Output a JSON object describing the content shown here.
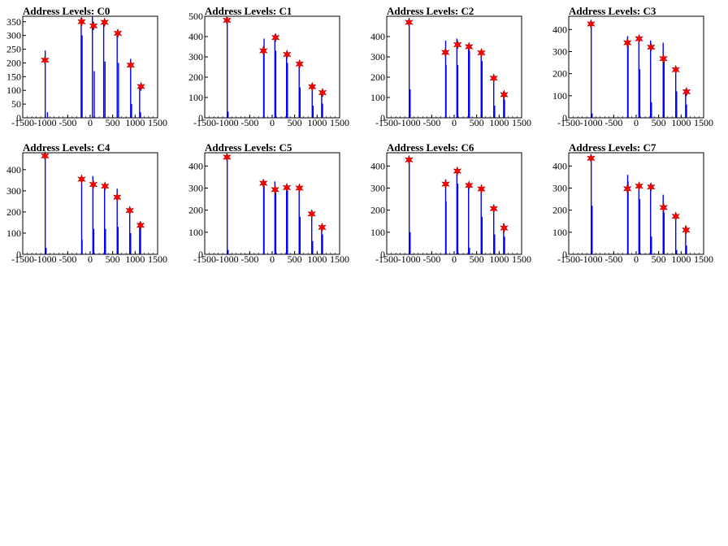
{
  "figure": {
    "background": "#ffffff",
    "bar_color": "#0000ff",
    "peak_marker_color": "#ff0000"
  },
  "chart_data": [
    {
      "type": "histogram",
      "title": "Address Levels: C0",
      "xlim": [
        -1500,
        1500
      ],
      "ylim": [
        0,
        370
      ],
      "x_ticks": [
        -1500,
        -1000,
        -500,
        0,
        500,
        1000,
        1500
      ],
      "x_tick_labels": [
        "-1500",
        "-1000",
        "-500",
        "0",
        "500",
        "1000",
        "1500"
      ],
      "y_ticks": [
        0,
        50,
        100,
        150,
        200,
        250,
        300,
        350
      ],
      "series": [
        {
          "x": [
            -1000,
            -950,
            -200,
            -180,
            50,
            90,
            300,
            330,
            600,
            630,
            900,
            920,
            1100,
            1120
          ],
          "y": [
            245,
            20,
            365,
            300,
            370,
            170,
            355,
            205,
            310,
            200,
            215,
            50,
            115,
            20
          ]
        }
      ],
      "peaks": [
        {
          "x": -1005,
          "y": 210
        },
        {
          "x": -190,
          "y": 350
        },
        {
          "x": 75,
          "y": 335
        },
        {
          "x": 320,
          "y": 348
        },
        {
          "x": 615,
          "y": 308
        },
        {
          "x": 900,
          "y": 192
        },
        {
          "x": 1130,
          "y": 114
        }
      ]
    },
    {
      "type": "histogram",
      "title": "Address Levels: C1",
      "xlim": [
        -1500,
        1500
      ],
      "ylim": [
        0,
        500
      ],
      "x_ticks": [
        -1500,
        -1000,
        -500,
        0,
        500,
        1000,
        1500
      ],
      "x_tick_labels": [
        "-1500",
        "-1000",
        "-500",
        "0",
        "500",
        "1000",
        "1500"
      ],
      "y_ticks": [
        0,
        100,
        200,
        300,
        400,
        500
      ],
      "series": [
        {
          "x": [
            -1000,
            -980,
            -190,
            -180,
            60,
            80,
            320,
            340,
            600,
            620,
            890,
            910,
            1100,
            1120
          ],
          "y": [
            490,
            30,
            320,
            390,
            410,
            330,
            300,
            270,
            280,
            150,
            170,
            60,
            130,
            70
          ]
        }
      ],
      "peaks": [
        {
          "x": -1005,
          "y": 480
        },
        {
          "x": -195,
          "y": 330
        },
        {
          "x": 75,
          "y": 395
        },
        {
          "x": 330,
          "y": 312
        },
        {
          "x": 610,
          "y": 265
        },
        {
          "x": 890,
          "y": 153
        },
        {
          "x": 1120,
          "y": 124
        }
      ]
    },
    {
      "type": "histogram",
      "title": "Address Levels: C2",
      "xlim": [
        -1500,
        1500
      ],
      "ylim": [
        0,
        500
      ],
      "x_ticks": [
        -1500,
        -1000,
        -500,
        0,
        500,
        1000,
        1500
      ],
      "x_tick_labels": [
        "-1500",
        "-1000",
        "-500",
        "0",
        "500",
        "1000",
        "1500"
      ],
      "y_ticks": [
        0,
        100,
        200,
        300,
        400
      ],
      "series": [
        {
          "x": [
            -1000,
            -980,
            -190,
            -180,
            60,
            80,
            320,
            340,
            600,
            620,
            880,
            900,
            1100,
            1120
          ],
          "y": [
            490,
            140,
            380,
            260,
            390,
            260,
            360,
            330,
            310,
            280,
            200,
            60,
            130,
            90
          ]
        }
      ],
      "peaks": [
        {
          "x": -1005,
          "y": 470
        },
        {
          "x": -195,
          "y": 322
        },
        {
          "x": 75,
          "y": 360
        },
        {
          "x": 330,
          "y": 350
        },
        {
          "x": 605,
          "y": 320
        },
        {
          "x": 880,
          "y": 195
        },
        {
          "x": 1110,
          "y": 114
        }
      ]
    },
    {
      "type": "histogram",
      "title": "Address Levels: C3",
      "xlim": [
        -1500,
        1500
      ],
      "ylim": [
        0,
        460
      ],
      "x_ticks": [
        -1500,
        -1000,
        -500,
        0,
        500,
        1000,
        1500
      ],
      "x_tick_labels": [
        "-1500",
        "-1000",
        "-500",
        "0",
        "500",
        "1000",
        "1500"
      ],
      "y_ticks": [
        0,
        100,
        200,
        300,
        400
      ],
      "series": [
        {
          "x": [
            -1000,
            -980,
            -190,
            -180,
            60,
            80,
            320,
            340,
            600,
            620,
            880,
            900,
            1100,
            1120
          ],
          "y": [
            430,
            20,
            370,
            330,
            370,
            220,
            350,
            70,
            340,
            260,
            220,
            120,
            130,
            60
          ]
        }
      ],
      "peaks": [
        {
          "x": -1005,
          "y": 425
        },
        {
          "x": -195,
          "y": 340
        },
        {
          "x": 65,
          "y": 358
        },
        {
          "x": 330,
          "y": 320
        },
        {
          "x": 605,
          "y": 268
        },
        {
          "x": 880,
          "y": 218
        },
        {
          "x": 1120,
          "y": 118
        }
      ]
    },
    {
      "type": "histogram",
      "title": "Address Levels: C4",
      "xlim": [
        -1500,
        1500
      ],
      "ylim": [
        0,
        480
      ],
      "x_ticks": [
        -1500,
        -1000,
        -500,
        0,
        500,
        1000,
        1500
      ],
      "x_tick_labels": [
        "-1500",
        "-1000",
        "-500",
        "0",
        "500",
        "1000",
        "1500"
      ],
      "y_ticks": [
        0,
        100,
        200,
        300,
        400
      ],
      "series": [
        {
          "x": [
            -1000,
            -980,
            -190,
            -180,
            60,
            80,
            320,
            340,
            600,
            620,
            880,
            900,
            1100,
            1120
          ],
          "y": [
            475,
            30,
            370,
            70,
            370,
            120,
            330,
            120,
            310,
            130,
            220,
            100,
            150,
            130
          ]
        }
      ],
      "peaks": [
        {
          "x": -1005,
          "y": 465
        },
        {
          "x": -190,
          "y": 355
        },
        {
          "x": 70,
          "y": 330
        },
        {
          "x": 330,
          "y": 322
        },
        {
          "x": 600,
          "y": 270
        },
        {
          "x": 880,
          "y": 207
        },
        {
          "x": 1120,
          "y": 137
        }
      ]
    },
    {
      "type": "histogram",
      "title": "Address Levels: C5",
      "xlim": [
        -1500,
        1500
      ],
      "ylim": [
        0,
        460
      ],
      "x_ticks": [
        -1500,
        -1000,
        -500,
        0,
        500,
        1000,
        1500
      ],
      "x_tick_labels": [
        "-1500",
        "-1000",
        "-500",
        "0",
        "500",
        "1000",
        "1500"
      ],
      "y_ticks": [
        0,
        100,
        200,
        300,
        400
      ],
      "series": [
        {
          "x": [
            -1000,
            -980,
            -190,
            -180,
            60,
            80,
            320,
            340,
            600,
            620,
            880,
            900,
            1100,
            1120
          ],
          "y": [
            450,
            20,
            330,
            310,
            330,
            290,
            310,
            290,
            310,
            170,
            200,
            60,
            130,
            90
          ]
        }
      ],
      "peaks": [
        {
          "x": -1005,
          "y": 440
        },
        {
          "x": -195,
          "y": 322
        },
        {
          "x": 65,
          "y": 293
        },
        {
          "x": 325,
          "y": 302
        },
        {
          "x": 605,
          "y": 300
        },
        {
          "x": 880,
          "y": 183
        },
        {
          "x": 1110,
          "y": 122
        }
      ]
    },
    {
      "type": "histogram",
      "title": "Address Levels: C6",
      "xlim": [
        -1500,
        1500
      ],
      "ylim": [
        0,
        460
      ],
      "x_ticks": [
        -1500,
        -1000,
        -500,
        0,
        500,
        1000,
        1500
      ],
      "x_tick_labels": [
        "-1500",
        "-1000",
        "-500",
        "0",
        "500",
        "1000",
        "1500"
      ],
      "y_ticks": [
        0,
        100,
        200,
        300,
        400
      ],
      "series": [
        {
          "x": [
            -1000,
            -980,
            -190,
            -180,
            60,
            80,
            320,
            340,
            600,
            620,
            880,
            900,
            1100,
            1120
          ],
          "y": [
            440,
            100,
            340,
            240,
            380,
            320,
            320,
            30,
            310,
            170,
            210,
            90,
            140,
            80
          ]
        }
      ],
      "peaks": [
        {
          "x": -1005,
          "y": 428
        },
        {
          "x": -190,
          "y": 318
        },
        {
          "x": 70,
          "y": 377
        },
        {
          "x": 330,
          "y": 312
        },
        {
          "x": 605,
          "y": 296
        },
        {
          "x": 880,
          "y": 207
        },
        {
          "x": 1110,
          "y": 119
        }
      ]
    },
    {
      "type": "histogram",
      "title": "Address Levels: C7",
      "xlim": [
        -1500,
        1500
      ],
      "ylim": [
        0,
        460
      ],
      "x_ticks": [
        -1500,
        -1000,
        -500,
        0,
        500,
        1000,
        1500
      ],
      "x_tick_labels": [
        "-1500",
        "-1000",
        "-500",
        "0",
        "500",
        "1000",
        "1500"
      ],
      "y_ticks": [
        0,
        100,
        200,
        300,
        400
      ],
      "series": [
        {
          "x": [
            -1000,
            -980,
            -190,
            -180,
            60,
            80,
            320,
            340,
            600,
            620,
            880,
            900,
            1100,
            1120
          ],
          "y": [
            440,
            220,
            360,
            330,
            310,
            250,
            320,
            80,
            270,
            190,
            180,
            20,
            130,
            40
          ]
        }
      ],
      "peaks": [
        {
          "x": -1005,
          "y": 435
        },
        {
          "x": -195,
          "y": 297
        },
        {
          "x": 65,
          "y": 309
        },
        {
          "x": 330,
          "y": 305
        },
        {
          "x": 610,
          "y": 212
        },
        {
          "x": 880,
          "y": 172
        },
        {
          "x": 1110,
          "y": 110
        }
      ]
    }
  ]
}
